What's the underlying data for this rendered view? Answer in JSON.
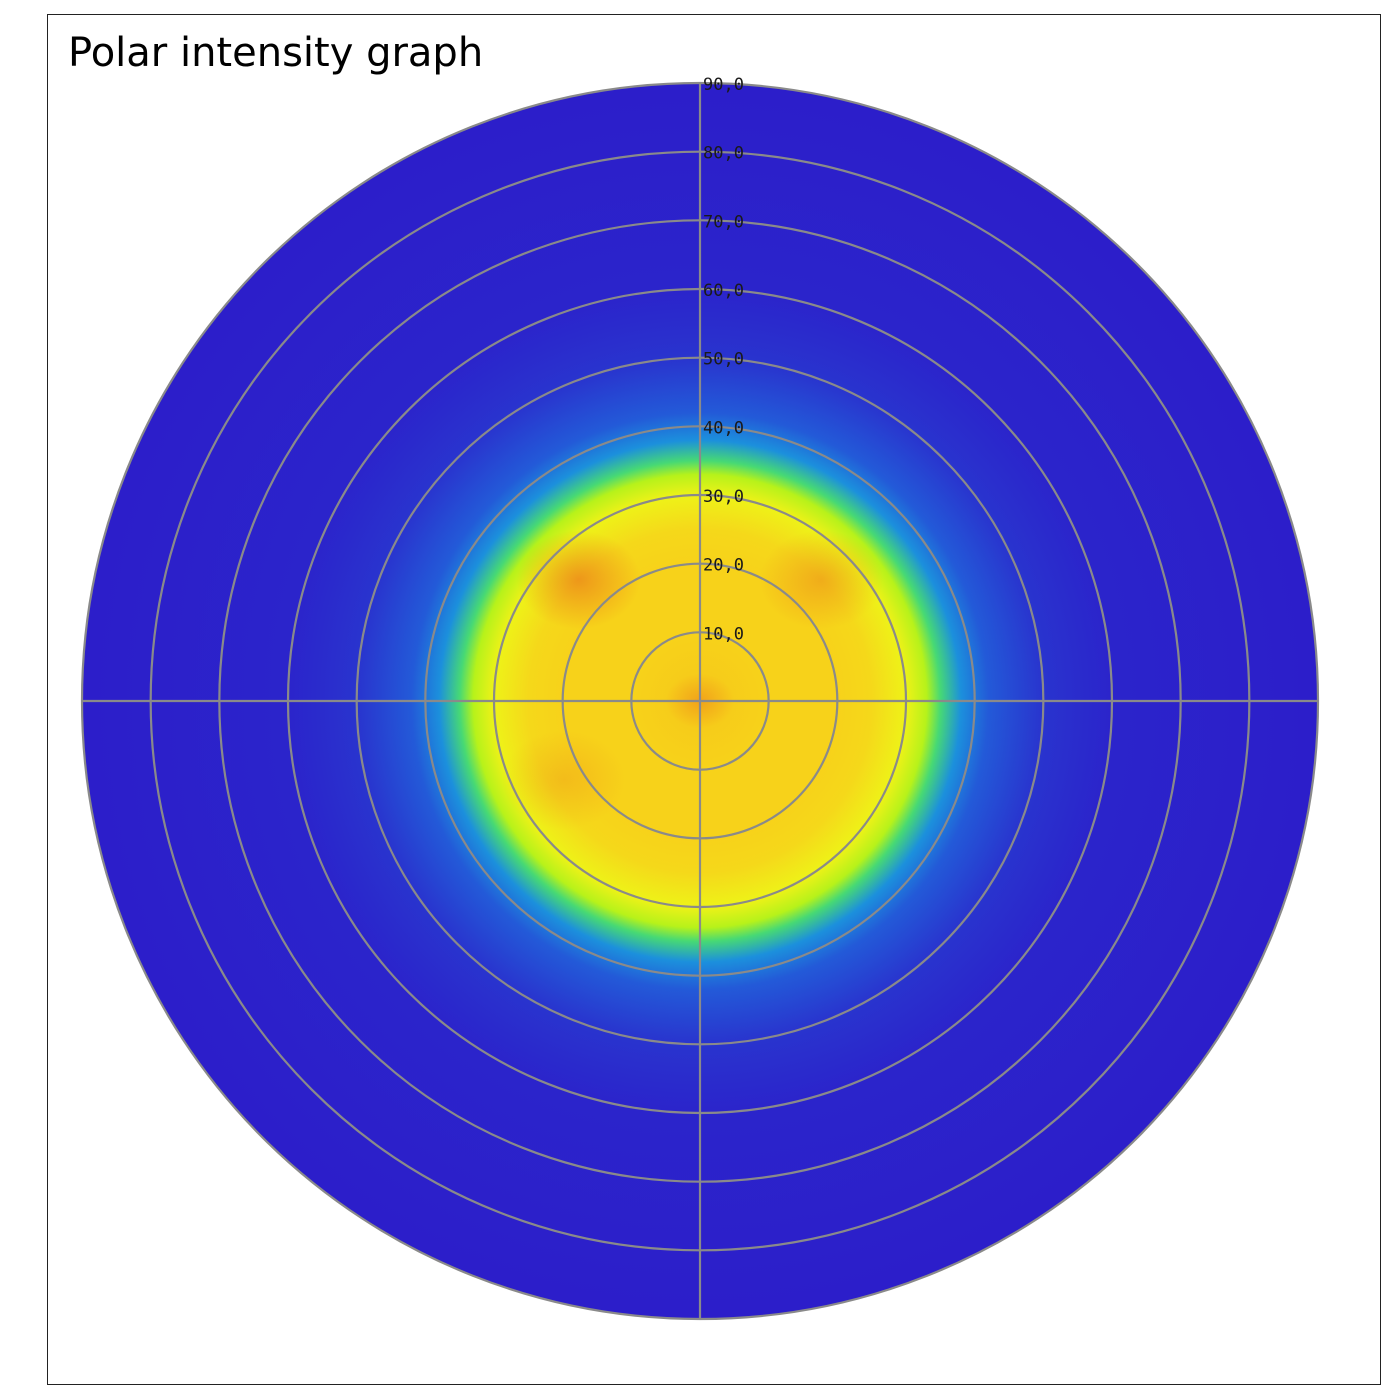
{
  "chart_data": {
    "type": "heatmap",
    "subtype": "polar",
    "title": "Polar intensity graph",
    "radial_axis": {
      "range": [
        0,
        90
      ],
      "ticks": [
        10,
        20,
        30,
        40,
        50,
        60,
        70,
        80,
        90
      ],
      "tick_labels": [
        "10,0",
        "20,0",
        "30,0",
        "40,0",
        "50,0",
        "60,0",
        "70,0",
        "80,0",
        "90,0"
      ]
    },
    "grid": true,
    "grid_color": "#8a8a8a",
    "colormap": [
      "#2e10c8",
      "#2a2ccc",
      "#2453d6",
      "#1e78e0",
      "#1aa8d8",
      "#2bd38a",
      "#b7f21a",
      "#eef218",
      "#f7d21a",
      "#f4a21c",
      "#e8641a"
    ],
    "intensity_profile": {
      "radius": [
        0,
        10,
        20,
        25,
        30,
        33,
        35,
        38,
        42,
        50,
        60,
        90
      ],
      "level": [
        0.82,
        0.8,
        0.8,
        0.78,
        0.7,
        0.6,
        0.52,
        0.35,
        0.22,
        0.12,
        0.07,
        0.05
      ]
    },
    "hotspots": [
      {
        "angle_deg": 135,
        "radius": 25,
        "level": 0.95
      },
      {
        "angle_deg": 45,
        "radius": 25,
        "level": 0.9
      },
      {
        "angle_deg": 210,
        "radius": 23,
        "level": 0.86
      },
      {
        "angle_deg": 0,
        "radius": 0,
        "level": 0.9
      }
    ]
  }
}
